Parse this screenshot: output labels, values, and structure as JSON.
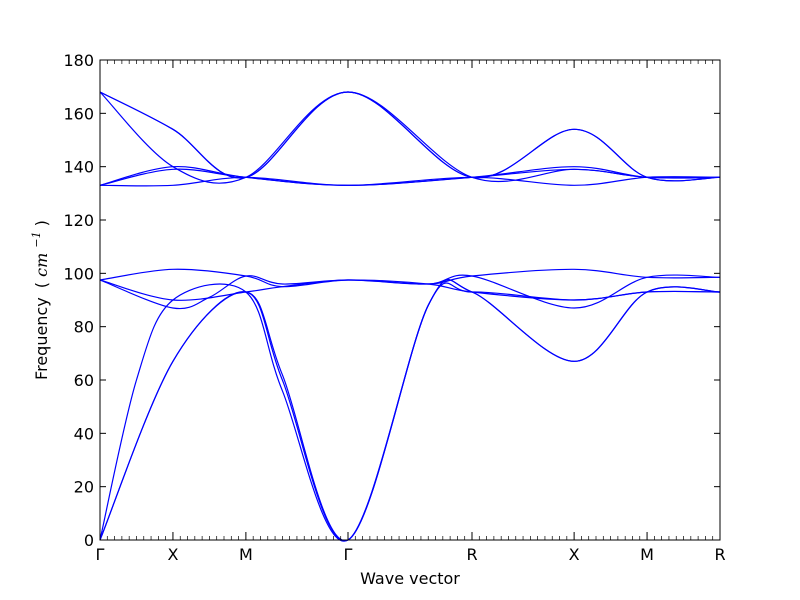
{
  "chart_data": {
    "type": "line",
    "title": "",
    "xlabel": "Wave vector",
    "ylabel": {
      "text": "Frequency",
      "unit_open": "(",
      "unit_base": "cm",
      "unit_exp": "−1",
      "unit_close": ")"
    },
    "ylim": [
      0,
      180
    ],
    "yticks": [
      0,
      20,
      40,
      60,
      80,
      100,
      120,
      140,
      160,
      180
    ],
    "xlim": [
      0,
      8.5
    ],
    "high_symmetry_points": [
      {
        "label": "Γ",
        "x": 0
      },
      {
        "label": "X",
        "x": 1
      },
      {
        "label": "M",
        "x": 2
      },
      {
        "label": "Γ",
        "x": 3.4
      },
      {
        "label": "R",
        "x": 5.1
      },
      {
        "label": "X",
        "x": 6.5
      },
      {
        "label": "M",
        "x": 7.5
      },
      {
        "label": "R",
        "x": 8.5
      }
    ],
    "line_color": "#0000ff",
    "legend": "none",
    "grid": false,
    "series": [
      {
        "x": [
          0,
          1,
          2,
          2.5,
          3.4,
          4.5,
          5.1,
          6.5,
          7.5,
          8.5
        ],
        "values": [
          0,
          67,
          93,
          60,
          0,
          88,
          93,
          67,
          93,
          93
        ]
      },
      {
        "x": [
          0,
          1,
          2,
          2.5,
          3.4,
          4.5,
          5.1,
          6.5,
          7.5,
          8.5
        ],
        "values": [
          0,
          67,
          93,
          62,
          0,
          88,
          93,
          67,
          93,
          93
        ]
      },
      {
        "x": [
          0,
          0.5,
          1,
          2,
          2.5,
          3.4,
          4.5,
          5.1,
          6.5,
          7.5,
          8.5
        ],
        "values": [
          0,
          60,
          90,
          93,
          56,
          0,
          88,
          93,
          90,
          93,
          93
        ]
      },
      {
        "x": [
          0,
          1,
          1.5,
          2,
          2.5,
          3.4,
          4.5,
          5.1,
          6.5,
          7.5,
          8.5
        ],
        "values": [
          97.5,
          87,
          91,
          99,
          96,
          97.5,
          96,
          99,
          87,
          98.5,
          98.5
        ]
      },
      {
        "x": [
          0,
          1,
          2,
          2.5,
          3.4,
          4.5,
          5.1,
          6.5,
          7.5,
          8.5
        ],
        "values": [
          97.5,
          90,
          93,
          95,
          97.5,
          96,
          93,
          90,
          93,
          93
        ]
      },
      {
        "x": [
          0,
          1,
          2,
          2.5,
          3.4,
          4.5,
          5.1,
          6.5,
          7.5,
          8.5
        ],
        "values": [
          97.5,
          101.5,
          99,
          95,
          97.5,
          96,
          99,
          101.5,
          98.5,
          98.5
        ]
      },
      {
        "x": [
          0,
          1,
          2,
          3.4,
          5.1,
          6.5,
          7.5,
          8.5
        ],
        "values": [
          133,
          133,
          136,
          133,
          136,
          133,
          136,
          136
        ]
      },
      {
        "x": [
          0,
          1,
          2,
          3.4,
          5.1,
          6.5,
          7.5,
          8.5
        ],
        "values": [
          133,
          139,
          136,
          133,
          136,
          139,
          136,
          136
        ]
      },
      {
        "x": [
          0,
          1,
          2,
          3.4,
          5.1,
          6.5,
          7.5,
          8.5
        ],
        "values": [
          133,
          140,
          136,
          133,
          136,
          140,
          136,
          136
        ]
      },
      {
        "x": [
          0,
          1,
          2,
          3.4,
          5.1,
          6.5,
          7.5,
          8.5
        ],
        "values": [
          168,
          140,
          136,
          168,
          136,
          139,
          136,
          136
        ]
      },
      {
        "x": [
          0,
          1,
          2,
          3.4,
          5.1,
          6.5,
          7.5,
          8.5
        ],
        "values": [
          168,
          154,
          136,
          168,
          136,
          154,
          136,
          136
        ]
      },
      {
        "x": [
          0,
          1,
          2,
          3.4,
          5.1,
          6.5,
          7.5,
          8.5
        ],
        "values": [
          168,
          154,
          136,
          168,
          136,
          154,
          136,
          136
        ]
      }
    ]
  }
}
